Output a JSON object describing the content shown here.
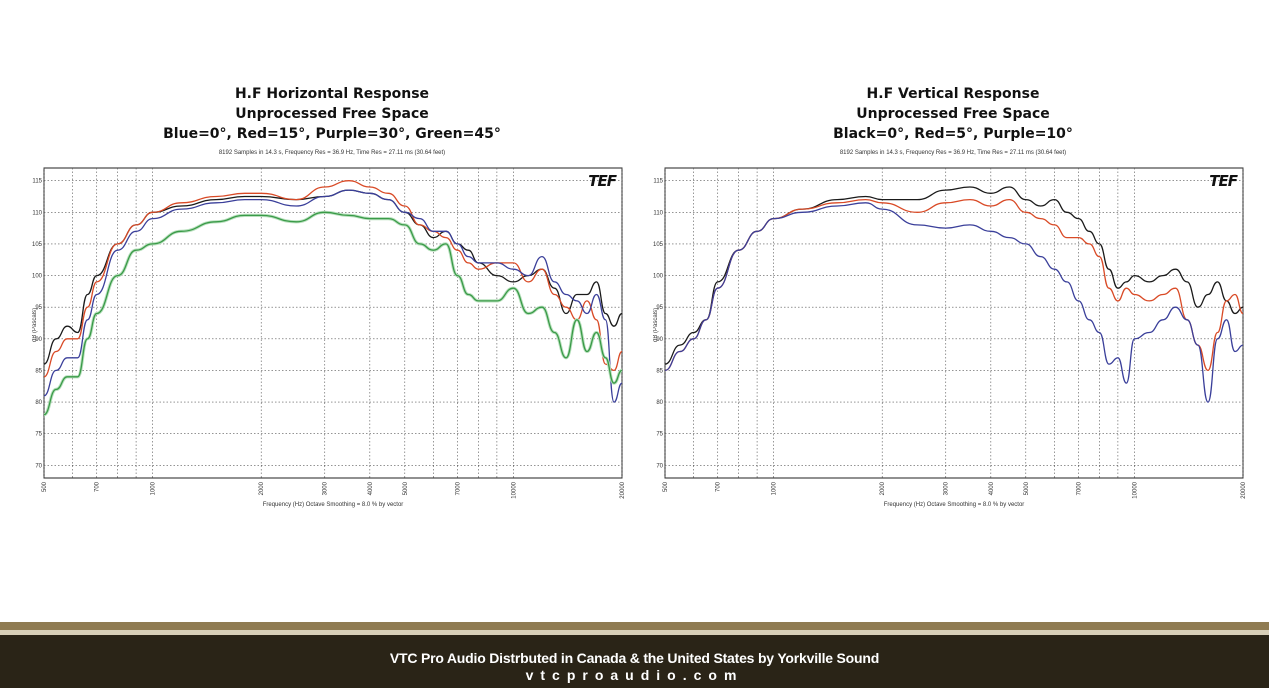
{
  "charts": [
    {
      "title_lines": [
        "H.F Horizontal Response",
        "Unprocessed Free Space",
        "Blue=0°, Red=15°, Purple=30°, Green=45°"
      ],
      "subtitle": "8192 Samples in 14.3 s, Frequency Res = 36.9 Hz, Time Res = 27.11 ms (30.64 feet)",
      "xlabel": "Frequency (Hz) Octave Smoothing = 8.0 % by vector",
      "ylabel": "dB (Pascals)",
      "logo": "TEF"
    },
    {
      "title_lines": [
        "H.F Vertical Response",
        "Unprocessed Free Space",
        "Black=0°, Red=5°, Purple=10°"
      ],
      "subtitle": "8192 Samples in 14.3 s, Frequency Res = 36.9 Hz, Time Res = 27.11 ms (30.64 feet)",
      "xlabel": "Frequency (Hz) Octave Smoothing = 8.0 % by vector",
      "ylabel": "dB (Pascals)",
      "logo": "TEF"
    }
  ],
  "chart_data": [
    {
      "type": "line",
      "title": "H.F Horizontal Response",
      "xlabel": "Frequency (Hz) Octave Smoothing = 8.0 % by vector",
      "ylabel": "dB (Pascals)",
      "xscale": "log",
      "xlim": [
        500,
        20000
      ],
      "ylim": [
        68,
        117
      ],
      "grid": true,
      "x_ticks": [
        500,
        700,
        1000,
        2000,
        3000,
        4000,
        5000,
        7000,
        10000,
        20000
      ],
      "y_ticks": [
        70,
        75,
        80,
        85,
        90,
        95,
        100,
        105,
        110,
        115
      ],
      "series": [
        {
          "color": "#1a1a1a",
          "x": [
            500,
            540,
            580,
            620,
            660,
            700,
            800,
            900,
            1000,
            1200,
            1500,
            1800,
            2000,
            2500,
            3000,
            3500,
            4000,
            4500,
            5000,
            5500,
            6000,
            6500,
            7000,
            7500,
            8000,
            9000,
            10000,
            11000,
            12000,
            13000,
            14000,
            15000,
            16000,
            17000,
            18000,
            19000,
            20000
          ],
          "y": [
            86,
            90,
            92,
            91,
            97,
            100,
            105,
            108,
            110,
            111,
            112,
            112.5,
            112.5,
            112,
            112.5,
            113.5,
            113,
            112,
            110,
            108,
            106,
            107,
            105,
            104,
            102,
            100,
            99,
            100,
            101,
            98,
            94,
            97,
            97,
            99,
            94,
            92,
            94
          ]
        },
        {
          "color": "#d94a26",
          "x": [
            500,
            540,
            580,
            620,
            660,
            700,
            800,
            900,
            1000,
            1200,
            1500,
            1800,
            2000,
            2500,
            3000,
            3500,
            4000,
            4500,
            5000,
            5500,
            6000,
            6500,
            7000,
            7500,
            8000,
            9000,
            10000,
            11000,
            12000,
            13000,
            14000,
            15000,
            16000,
            17000,
            18000,
            19000,
            20000
          ],
          "y": [
            84,
            88,
            90,
            90,
            95,
            99,
            105,
            108,
            110,
            111.5,
            112.5,
            113,
            113,
            112,
            114,
            115,
            114,
            113,
            111,
            108,
            107,
            106,
            104,
            102,
            101,
            102,
            102,
            99,
            101,
            97,
            95,
            93,
            96,
            93,
            86,
            85,
            88
          ]
        },
        {
          "color": "#3a3f9a",
          "x": [
            500,
            540,
            580,
            620,
            660,
            700,
            800,
            900,
            1000,
            1200,
            1500,
            1800,
            2000,
            2500,
            3000,
            3500,
            4000,
            4500,
            5000,
            5500,
            6000,
            6500,
            7000,
            7500,
            8000,
            9000,
            10000,
            11000,
            12000,
            13000,
            14000,
            15000,
            16000,
            17000,
            18000,
            19000,
            20000
          ],
          "y": [
            81,
            85,
            87,
            87,
            93,
            97,
            104,
            107,
            109,
            110.5,
            111.5,
            112,
            112,
            111,
            112.5,
            113.5,
            113,
            112,
            110,
            109,
            107,
            107,
            105,
            103,
            102,
            102,
            101,
            100,
            103,
            99,
            97,
            96,
            94,
            97,
            93,
            80,
            83
          ]
        },
        {
          "color": "#3a9a48",
          "x": [
            500,
            540,
            580,
            620,
            660,
            700,
            800,
            900,
            1000,
            1200,
            1500,
            1800,
            2000,
            2500,
            3000,
            3500,
            4000,
            4500,
            5000,
            5500,
            6000,
            6500,
            7000,
            7500,
            8000,
            9000,
            10000,
            11000,
            12000,
            13000,
            14000,
            15000,
            16000,
            17000,
            18000,
            19000,
            20000
          ],
          "y": [
            78,
            82,
            84,
            84,
            90,
            94,
            100,
            104,
            105,
            107,
            108.5,
            109.5,
            109.5,
            108.5,
            110,
            109.5,
            109,
            109,
            108,
            105,
            104,
            105,
            100,
            97,
            96,
            96,
            98,
            94,
            95,
            91,
            87,
            93,
            88,
            91,
            87,
            83,
            85
          ]
        }
      ]
    },
    {
      "type": "line",
      "title": "H.F Vertical Response",
      "xlabel": "Frequency (Hz) Octave Smoothing = 8.0 % by vector",
      "ylabel": "dB (Pascals)",
      "xscale": "log",
      "xlim": [
        500,
        20000
      ],
      "ylim": [
        68,
        117
      ],
      "grid": true,
      "x_ticks": [
        500,
        700,
        1000,
        2000,
        3000,
        4000,
        5000,
        7000,
        10000,
        20000
      ],
      "y_ticks": [
        70,
        75,
        80,
        85,
        90,
        95,
        100,
        105,
        110,
        115
      ],
      "series": [
        {
          "color": "#1a1a1a",
          "x": [
            500,
            550,
            600,
            650,
            700,
            800,
            900,
            1000,
            1200,
            1500,
            1800,
            2000,
            2500,
            3000,
            3500,
            4000,
            4500,
            5000,
            5500,
            6000,
            6500,
            7000,
            7500,
            8000,
            8500,
            9000,
            9500,
            10000,
            11000,
            12000,
            13000,
            14000,
            15000,
            16000,
            17000,
            18000,
            19000,
            20000
          ],
          "y": [
            86,
            89,
            91,
            93,
            99,
            104,
            107,
            109,
            110.5,
            112,
            112.5,
            112,
            112,
            113.5,
            114,
            113,
            114,
            112,
            111,
            112,
            110,
            109,
            107,
            105,
            101,
            98,
            99,
            100,
            99,
            100,
            101,
            99,
            95,
            97,
            99,
            96,
            94,
            95
          ]
        },
        {
          "color": "#d94a26",
          "x": [
            500,
            550,
            600,
            650,
            700,
            800,
            900,
            1000,
            1200,
            1500,
            1800,
            2000,
            2500,
            3000,
            3500,
            4000,
            4500,
            5000,
            5500,
            6000,
            6500,
            7000,
            7500,
            8000,
            8500,
            9000,
            9500,
            10000,
            11000,
            12000,
            13000,
            14000,
            15000,
            16000,
            17000,
            18000,
            19000,
            20000
          ],
          "y": [
            85,
            88,
            90,
            93,
            98,
            104,
            107,
            109,
            110.5,
            111.5,
            112,
            111.5,
            110,
            111.5,
            112,
            111,
            112,
            110,
            109,
            108,
            106,
            106,
            105,
            103,
            98,
            96,
            98,
            97,
            96,
            97,
            98,
            93,
            89,
            85,
            91,
            96,
            97,
            94
          ]
        },
        {
          "color": "#3a3f9a",
          "x": [
            500,
            550,
            600,
            650,
            700,
            800,
            900,
            1000,
            1200,
            1500,
            1800,
            2000,
            2500,
            3000,
            3500,
            4000,
            4500,
            5000,
            5500,
            6000,
            6500,
            7000,
            7500,
            8000,
            8500,
            9000,
            9500,
            10000,
            11000,
            12000,
            13000,
            14000,
            15000,
            16000,
            17000,
            18000,
            19000,
            20000
          ],
          "y": [
            85,
            88,
            90,
            93,
            98,
            104,
            107,
            109,
            110,
            111,
            111.5,
            110.5,
            108,
            107.5,
            108,
            107,
            106,
            105,
            103,
            101,
            99,
            96,
            93,
            91,
            86,
            87,
            83,
            90,
            91,
            93,
            95,
            93,
            89,
            80,
            90,
            93,
            88,
            89
          ]
        }
      ]
    }
  ],
  "footer": {
    "line1": "VTC Pro Audio Distrbuted in Canada & the United States by Yorkville Sound",
    "line2": "vtcproaudio.com"
  }
}
